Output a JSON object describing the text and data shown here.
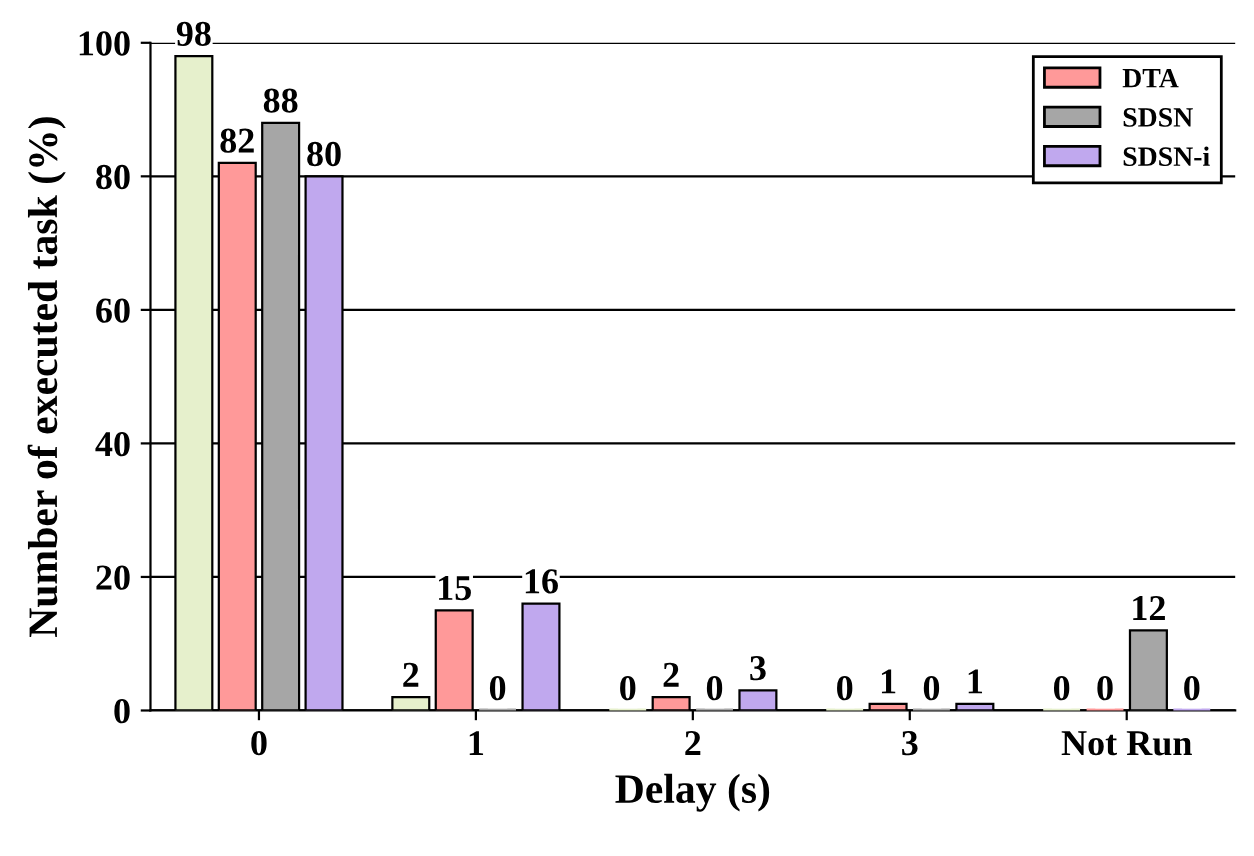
{
  "chart_data": {
    "type": "bar",
    "xlabel": "Delay (s)",
    "ylabel": "Number of executed task (%)",
    "categories": [
      "0",
      "1",
      "2",
      "3",
      "Not Run"
    ],
    "series": [
      {
        "color": "#e6f0cc",
        "values": [
          98,
          2,
          0,
          0,
          0
        ]
      },
      {
        "name": "DTA",
        "color": "#ff9999",
        "values": [
          82,
          15,
          2,
          1,
          0
        ]
      },
      {
        "name": "SDSN",
        "color": "#a6a6a6",
        "values": [
          88,
          0,
          0,
          0,
          12
        ]
      },
      {
        "name": "SDSN-i",
        "color": "#c0a8ee",
        "values": [
          80,
          16,
          3,
          1,
          0
        ]
      }
    ],
    "ylim": [
      0,
      100
    ],
    "yticks": [
      0,
      20,
      40,
      60,
      80,
      100
    ],
    "grid": "y",
    "legend": "top right",
    "data_labels": true
  }
}
